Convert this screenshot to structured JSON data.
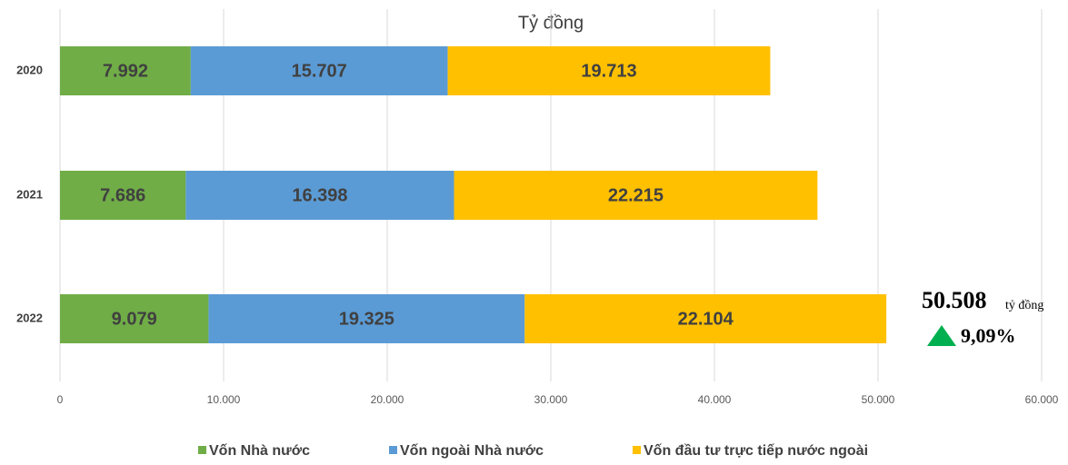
{
  "chart_data": {
    "type": "stacked_barh",
    "axis_title": "Tỷ đồng",
    "categories": [
      "2020",
      "2021",
      "2022"
    ],
    "series": [
      {
        "name": "Vốn Nhà nước",
        "color": "#70ad47",
        "values": [
          7992,
          7686,
          9079
        ],
        "value_labels": [
          "7.992",
          "7.686",
          "9.079"
        ]
      },
      {
        "name": "Vốn ngoài Nhà nước",
        "color": "#5b9bd5",
        "values": [
          15707,
          16398,
          19325
        ],
        "value_labels": [
          "15.707",
          "16.398",
          "19.325"
        ]
      },
      {
        "name": "Vốn đầu tư trực tiếp nước ngoài",
        "color": "#ffc000",
        "values": [
          19713,
          22215,
          22104
        ],
        "value_labels": [
          "19.713",
          "22.215",
          "22.104"
        ]
      }
    ],
    "xlim": [
      0,
      60000
    ],
    "xticks": [
      0,
      {
        "value": 10000,
        "label": "10.000"
      },
      {
        "value": 20000,
        "label": "20.000"
      },
      {
        "value": 30000,
        "label": "30.000"
      },
      {
        "value": 40000,
        "label": "40.000"
      },
      {
        "value": 50000,
        "label": "50.000"
      },
      {
        "value": 60000,
        "label": "60.000"
      }
    ],
    "grid": true,
    "legend": "bottom",
    "annotations": [
      "50.508",
      "tỷ đồng",
      "9,09%"
    ]
  }
}
